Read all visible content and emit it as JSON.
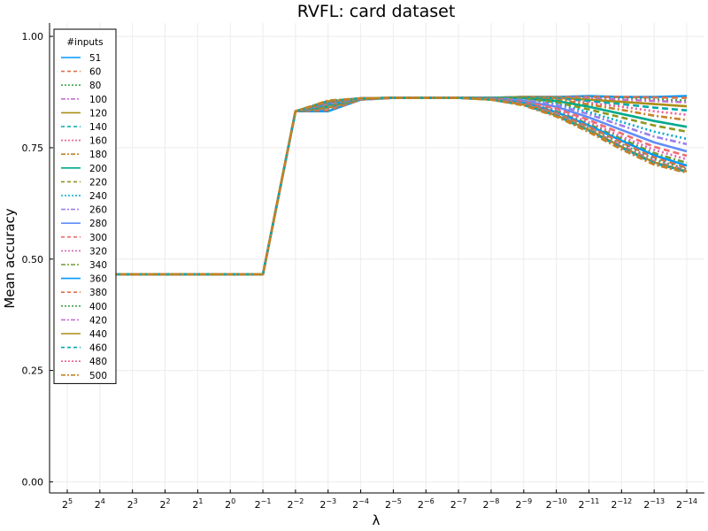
{
  "chart_data": {
    "type": "line",
    "title": "RVFL: card dataset",
    "xlabel": "λ",
    "ylabel": "Mean accuracy",
    "x_tick_labels": [
      {
        "base": "2",
        "exp": "5"
      },
      {
        "base": "2",
        "exp": "4"
      },
      {
        "base": "2",
        "exp": "3"
      },
      {
        "base": "2",
        "exp": "2"
      },
      {
        "base": "2",
        "exp": "1"
      },
      {
        "base": "2",
        "exp": "0"
      },
      {
        "base": "2",
        "exp": "−1"
      },
      {
        "base": "2",
        "exp": "−2"
      },
      {
        "base": "2",
        "exp": "−3"
      },
      {
        "base": "2",
        "exp": "−4"
      },
      {
        "base": "2",
        "exp": "−5"
      },
      {
        "base": "2",
        "exp": "−6"
      },
      {
        "base": "2",
        "exp": "−7"
      },
      {
        "base": "2",
        "exp": "−8"
      },
      {
        "base": "2",
        "exp": "−9"
      },
      {
        "base": "2",
        "exp": "−10"
      },
      {
        "base": "2",
        "exp": "−11"
      },
      {
        "base": "2",
        "exp": "−12"
      },
      {
        "base": "2",
        "exp": "−13"
      },
      {
        "base": "2",
        "exp": "−14"
      }
    ],
    "x_exponents": [
      5,
      4,
      3,
      2,
      1,
      0,
      -1,
      -2,
      -3,
      -4,
      -5,
      -6,
      -7,
      -8,
      -9,
      -10,
      -11,
      -12,
      -13,
      -14
    ],
    "y_ticks": [
      0.0,
      0.25,
      0.5,
      0.75,
      1.0
    ],
    "y_tick_labels": [
      "0.00",
      "0.25",
      "0.50",
      "0.75",
      "1.00"
    ],
    "ylim": [
      -0.025,
      1.03
    ],
    "grid": true,
    "legend": {
      "title": "#inputs",
      "placement": "top-left"
    },
    "series": [
      {
        "name": "51",
        "color": "#009AFA",
        "dash": "solid",
        "values": [
          0.466,
          0.466,
          0.466,
          0.466,
          0.466,
          0.466,
          0.466,
          0.832,
          0.832,
          0.858,
          0.862,
          0.862,
          0.862,
          0.862,
          0.864,
          0.864,
          0.866,
          0.864,
          0.864,
          0.866
        ]
      },
      {
        "name": "60",
        "color": "#E36F47",
        "dash": "dash",
        "values": [
          0.466,
          0.466,
          0.466,
          0.466,
          0.466,
          0.466,
          0.466,
          0.832,
          0.834,
          0.858,
          0.862,
          0.862,
          0.862,
          0.862,
          0.864,
          0.864,
          0.864,
          0.864,
          0.863,
          0.862
        ]
      },
      {
        "name": "80",
        "color": "#3EA44E",
        "dash": "dot",
        "values": [
          0.466,
          0.466,
          0.466,
          0.466,
          0.466,
          0.466,
          0.466,
          0.832,
          0.836,
          0.859,
          0.862,
          0.862,
          0.862,
          0.862,
          0.864,
          0.864,
          0.862,
          0.861,
          0.858,
          0.856
        ]
      },
      {
        "name": "100",
        "color": "#C371D2",
        "dash": "dashdot",
        "values": [
          0.466,
          0.466,
          0.466,
          0.466,
          0.466,
          0.466,
          0.466,
          0.832,
          0.838,
          0.859,
          0.862,
          0.862,
          0.862,
          0.862,
          0.864,
          0.863,
          0.861,
          0.858,
          0.855,
          0.852
        ]
      },
      {
        "name": "120",
        "color": "#AC8E18",
        "dash": "solid",
        "values": [
          0.466,
          0.466,
          0.466,
          0.466,
          0.466,
          0.466,
          0.466,
          0.832,
          0.84,
          0.859,
          0.862,
          0.862,
          0.862,
          0.862,
          0.864,
          0.862,
          0.858,
          0.853,
          0.848,
          0.843
        ]
      },
      {
        "name": "140",
        "color": "#00A9AD",
        "dash": "dash",
        "values": [
          0.466,
          0.466,
          0.466,
          0.466,
          0.466,
          0.466,
          0.466,
          0.832,
          0.842,
          0.86,
          0.862,
          0.862,
          0.862,
          0.862,
          0.863,
          0.861,
          0.855,
          0.848,
          0.84,
          0.834
        ]
      },
      {
        "name": "160",
        "color": "#ED5E93",
        "dash": "dot",
        "values": [
          0.466,
          0.466,
          0.466,
          0.466,
          0.466,
          0.466,
          0.466,
          0.832,
          0.843,
          0.86,
          0.862,
          0.862,
          0.862,
          0.862,
          0.863,
          0.86,
          0.851,
          0.842,
          0.832,
          0.824
        ]
      },
      {
        "name": "180",
        "color": "#C68125",
        "dash": "dashdot",
        "values": [
          0.466,
          0.466,
          0.466,
          0.466,
          0.466,
          0.466,
          0.466,
          0.832,
          0.845,
          0.86,
          0.862,
          0.862,
          0.862,
          0.862,
          0.862,
          0.858,
          0.847,
          0.835,
          0.822,
          0.812
        ]
      },
      {
        "name": "200",
        "color": "#00A98D",
        "dash": "solid",
        "values": [
          0.466,
          0.466,
          0.466,
          0.466,
          0.466,
          0.466,
          0.466,
          0.832,
          0.846,
          0.86,
          0.862,
          0.862,
          0.862,
          0.862,
          0.861,
          0.855,
          0.842,
          0.826,
          0.81,
          0.797
        ]
      },
      {
        "name": "220",
        "color": "#8E971D",
        "dash": "dash",
        "values": [
          0.466,
          0.466,
          0.466,
          0.466,
          0.466,
          0.466,
          0.466,
          0.832,
          0.847,
          0.86,
          0.862,
          0.862,
          0.862,
          0.861,
          0.86,
          0.852,
          0.836,
          0.818,
          0.8,
          0.786
        ]
      },
      {
        "name": "240",
        "color": "#00A8CB",
        "dash": "dot",
        "values": [
          0.466,
          0.466,
          0.466,
          0.466,
          0.466,
          0.466,
          0.466,
          0.832,
          0.848,
          0.86,
          0.862,
          0.862,
          0.862,
          0.861,
          0.858,
          0.849,
          0.83,
          0.808,
          0.786,
          0.77
        ]
      },
      {
        "name": "260",
        "color": "#9B7FE9",
        "dash": "dashdot",
        "values": [
          0.466,
          0.466,
          0.466,
          0.466,
          0.466,
          0.466,
          0.466,
          0.832,
          0.849,
          0.86,
          0.862,
          0.862,
          0.862,
          0.861,
          0.857,
          0.846,
          0.825,
          0.8,
          0.775,
          0.758
        ]
      },
      {
        "name": "280",
        "color": "#618DF6",
        "dash": "solid",
        "values": [
          0.466,
          0.466,
          0.466,
          0.466,
          0.466,
          0.466,
          0.466,
          0.832,
          0.85,
          0.861,
          0.862,
          0.862,
          0.862,
          0.86,
          0.855,
          0.842,
          0.818,
          0.79,
          0.762,
          0.742
        ]
      },
      {
        "name": "300",
        "color": "#F16C6C",
        "dash": "dash",
        "values": [
          0.466,
          0.466,
          0.466,
          0.466,
          0.466,
          0.466,
          0.466,
          0.832,
          0.85,
          0.861,
          0.862,
          0.862,
          0.862,
          0.86,
          0.853,
          0.838,
          0.812,
          0.782,
          0.752,
          0.732
        ]
      },
      {
        "name": "320",
        "color": "#DC63BB",
        "dash": "dot",
        "values": [
          0.466,
          0.466,
          0.466,
          0.466,
          0.466,
          0.466,
          0.466,
          0.832,
          0.851,
          0.861,
          0.862,
          0.862,
          0.862,
          0.86,
          0.852,
          0.835,
          0.807,
          0.775,
          0.745,
          0.724
        ]
      },
      {
        "name": "340",
        "color": "#6B9E32",
        "dash": "dashdot",
        "values": [
          0.466,
          0.466,
          0.466,
          0.466,
          0.466,
          0.466,
          0.466,
          0.832,
          0.852,
          0.861,
          0.862,
          0.862,
          0.862,
          0.86,
          0.851,
          0.832,
          0.803,
          0.77,
          0.738,
          0.716
        ]
      },
      {
        "name": "360",
        "color": "#009AFA",
        "dash": "solid",
        "values": [
          0.466,
          0.466,
          0.466,
          0.466,
          0.466,
          0.466,
          0.466,
          0.832,
          0.852,
          0.861,
          0.862,
          0.862,
          0.862,
          0.859,
          0.85,
          0.83,
          0.8,
          0.766,
          0.733,
          0.71
        ]
      },
      {
        "name": "380",
        "color": "#E36F47",
        "dash": "dash",
        "values": [
          0.466,
          0.466,
          0.466,
          0.466,
          0.466,
          0.466,
          0.466,
          0.832,
          0.853,
          0.861,
          0.862,
          0.862,
          0.862,
          0.859,
          0.849,
          0.828,
          0.797,
          0.762,
          0.728,
          0.705
        ]
      },
      {
        "name": "400",
        "color": "#3EA44E",
        "dash": "dot",
        "values": [
          0.466,
          0.466,
          0.466,
          0.466,
          0.466,
          0.466,
          0.466,
          0.832,
          0.853,
          0.861,
          0.862,
          0.862,
          0.862,
          0.859,
          0.848,
          0.826,
          0.794,
          0.758,
          0.724,
          0.702
        ]
      },
      {
        "name": "420",
        "color": "#C371D2",
        "dash": "dashdot",
        "values": [
          0.466,
          0.466,
          0.466,
          0.466,
          0.466,
          0.466,
          0.466,
          0.832,
          0.854,
          0.861,
          0.862,
          0.862,
          0.862,
          0.859,
          0.848,
          0.825,
          0.792,
          0.755,
          0.72,
          0.699
        ]
      },
      {
        "name": "440",
        "color": "#AC8E18",
        "dash": "solid",
        "values": [
          0.466,
          0.466,
          0.466,
          0.466,
          0.466,
          0.466,
          0.466,
          0.832,
          0.854,
          0.861,
          0.862,
          0.862,
          0.862,
          0.858,
          0.847,
          0.823,
          0.79,
          0.752,
          0.717,
          0.697
        ]
      },
      {
        "name": "460",
        "color": "#00A9AD",
        "dash": "dash",
        "values": [
          0.466,
          0.466,
          0.466,
          0.466,
          0.466,
          0.466,
          0.466,
          0.832,
          0.855,
          0.861,
          0.862,
          0.862,
          0.862,
          0.858,
          0.846,
          0.822,
          0.788,
          0.75,
          0.715,
          0.696
        ]
      },
      {
        "name": "480",
        "color": "#ED5E93",
        "dash": "dot",
        "values": [
          0.466,
          0.466,
          0.466,
          0.466,
          0.466,
          0.466,
          0.466,
          0.832,
          0.855,
          0.861,
          0.862,
          0.862,
          0.862,
          0.858,
          0.846,
          0.821,
          0.786,
          0.748,
          0.713,
          0.695
        ]
      },
      {
        "name": "500",
        "color": "#C68125",
        "dash": "dashdot",
        "values": [
          0.466,
          0.466,
          0.466,
          0.466,
          0.466,
          0.466,
          0.466,
          0.832,
          0.856,
          0.861,
          0.862,
          0.862,
          0.862,
          0.858,
          0.845,
          0.82,
          0.785,
          0.746,
          0.712,
          0.694
        ]
      }
    ]
  }
}
